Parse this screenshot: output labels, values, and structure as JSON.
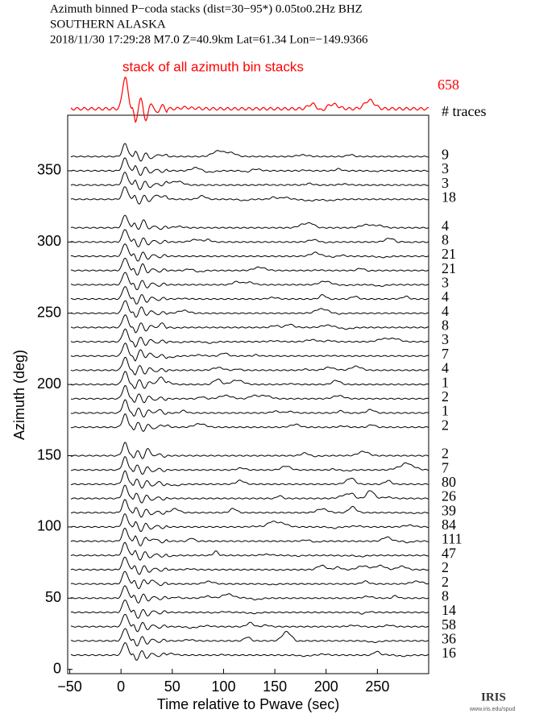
{
  "chart_data": {
    "type": "record-section",
    "title_lines": [
      "Azimuth binned P−coda stacks (dist=30−95*)  0.05to0.2Hz  BHZ",
      "SOUTHERN ALASKA",
      "2018/11/30  17:29:28  M7.0  Z=40.9km Lat=61.34 Lon=−149.9366"
    ],
    "stack": {
      "label": "stack of all azimuth bin stacks",
      "count": 658,
      "color": "#ff0000"
    },
    "count_header": "# traces",
    "x_label": "Time relative to Pwave (sec)",
    "y_label": "Azimuth (deg)",
    "xlim": [
      -52,
      300
    ],
    "xticks": [
      {
        "value": -50,
        "label": "−50"
      },
      0,
      50,
      100,
      150,
      200,
      250
    ],
    "ylim": [
      -3,
      389
    ],
    "yticks": [
      0,
      50,
      100,
      150,
      200,
      250,
      300,
      350
    ],
    "color": "#000000",
    "traces": [
      {
        "azimuth": 360,
        "count": 9
      },
      {
        "azimuth": 350,
        "count": 3
      },
      {
        "azimuth": 340,
        "count": 3
      },
      {
        "azimuth": 330,
        "count": 18
      },
      {
        "azimuth": 310,
        "count": 4
      },
      {
        "azimuth": 300,
        "count": 8
      },
      {
        "azimuth": 290,
        "count": 21
      },
      {
        "azimuth": 280,
        "count": 21
      },
      {
        "azimuth": 270,
        "count": 3
      },
      {
        "azimuth": 260,
        "count": 4
      },
      {
        "azimuth": 250,
        "count": 4
      },
      {
        "azimuth": 240,
        "count": 8
      },
      {
        "azimuth": 230,
        "count": 3
      },
      {
        "azimuth": 220,
        "count": 7
      },
      {
        "azimuth": 210,
        "count": 4
      },
      {
        "azimuth": 200,
        "count": 1
      },
      {
        "azimuth": 190,
        "count": 2
      },
      {
        "azimuth": 180,
        "count": 1
      },
      {
        "azimuth": 170,
        "count": 2
      },
      {
        "azimuth": 150,
        "count": 2
      },
      {
        "azimuth": 140,
        "count": 7
      },
      {
        "azimuth": 130,
        "count": 80
      },
      {
        "azimuth": 120,
        "count": 26
      },
      {
        "azimuth": 110,
        "count": 39
      },
      {
        "azimuth": 100,
        "count": 84
      },
      {
        "azimuth": 90,
        "count": 111
      },
      {
        "azimuth": 80,
        "count": 47
      },
      {
        "azimuth": 70,
        "count": 2
      },
      {
        "azimuth": 60,
        "count": 2
      },
      {
        "azimuth": 50,
        "count": 8
      },
      {
        "azimuth": 40,
        "count": 14
      },
      {
        "azimuth": 30,
        "count": 58
      },
      {
        "azimuth": 20,
        "count": 36
      },
      {
        "azimuth": 10,
        "count": 16
      }
    ]
  },
  "logo": {
    "text": "IRIS",
    "url": "www.iris.edu/spud"
  }
}
